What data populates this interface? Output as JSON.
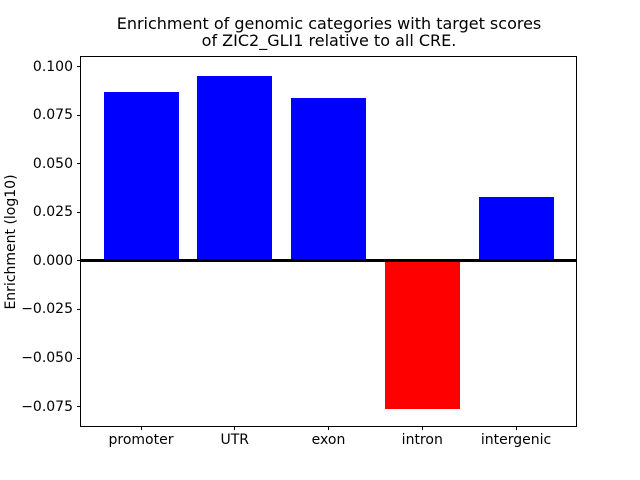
{
  "figure": {
    "title_line1": "Enrichment of genomic categories with target scores",
    "title_line2": "of ZIC2_GLI1 relative to all CRE.",
    "ylabel": "Enrichment (log10)",
    "background_color": "#ffffff",
    "axis_color": "#000000"
  },
  "chart_data": {
    "type": "bar",
    "title": "Enrichment of genomic categories with target scores of ZIC2_GLI1 relative to all CRE.",
    "xlabel": "",
    "ylabel": "Enrichment (log10)",
    "categories": [
      "promoter",
      "UTR",
      "exon",
      "intron",
      "intergenic"
    ],
    "values": [
      0.087,
      0.095,
      0.084,
      -0.076,
      0.033
    ],
    "bar_colors": [
      "#0000ff",
      "#0000ff",
      "#0000ff",
      "#ff0000",
      "#0000ff"
    ],
    "positive_color": "#0000ff",
    "negative_color": "#ff0000",
    "ylim": [
      -0.085,
      0.105
    ],
    "yticks": [
      0.1,
      0.075,
      0.05,
      0.025,
      0,
      -0.025,
      -0.05,
      -0.075
    ],
    "ytick_labels": [
      "0.100",
      "0.075",
      "0.050",
      "0.025",
      "0.000",
      "−0.025",
      "−0.050",
      "−0.075"
    ],
    "zero_line": true,
    "grid": false,
    "legend": "none",
    "bar_width_fraction": 0.8
  }
}
